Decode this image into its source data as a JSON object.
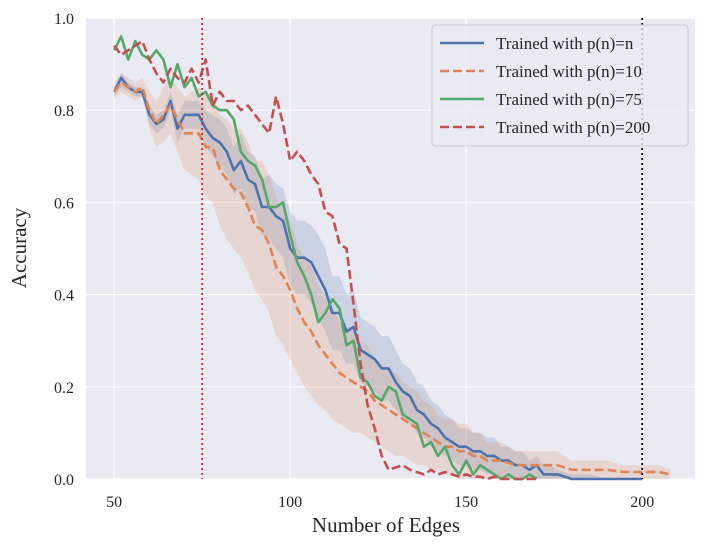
{
  "chart_data": {
    "type": "line",
    "title": "",
    "xlabel": "Number of Edges",
    "ylabel": "Accuracy",
    "xlim": [
      42,
      215
    ],
    "ylim": [
      0.0,
      1.0
    ],
    "xticks": [
      50,
      100,
      150,
      200
    ],
    "yticks": [
      0.0,
      0.2,
      0.4,
      0.6,
      0.8,
      1.0
    ],
    "xtick_labels": [
      "50",
      "100",
      "150",
      "200"
    ],
    "ytick_labels": [
      "0.0",
      "0.2",
      "0.4",
      "0.6",
      "0.8",
      "1.0"
    ],
    "grid": true,
    "legend_position": "top-right",
    "vlines": [
      {
        "x": 75,
        "color": "#d62728",
        "style": "dotted"
      },
      {
        "x": 200,
        "color": "#000000",
        "style": "dotted"
      }
    ],
    "series": [
      {
        "name": "Trained with p(n)=n",
        "color": "#4c72b0",
        "dash": "solid",
        "x": [
          50,
          52,
          54,
          56,
          58,
          60,
          62,
          64,
          66,
          68,
          70,
          72,
          74,
          76,
          78,
          80,
          82,
          84,
          86,
          88,
          90,
          92,
          94,
          96,
          98,
          100,
          102,
          104,
          106,
          108,
          110,
          112,
          114,
          116,
          118,
          120,
          122,
          124,
          126,
          128,
          130,
          132,
          134,
          136,
          138,
          140,
          142,
          144,
          146,
          148,
          150,
          152,
          154,
          156,
          158,
          160,
          162,
          164,
          166,
          168,
          170,
          172,
          174,
          176,
          178,
          180,
          185,
          190,
          195,
          200
        ],
        "values": [
          0.84,
          0.87,
          0.85,
          0.84,
          0.84,
          0.79,
          0.77,
          0.78,
          0.82,
          0.76,
          0.79,
          0.79,
          0.79,
          0.76,
          0.74,
          0.73,
          0.71,
          0.67,
          0.69,
          0.65,
          0.64,
          0.59,
          0.59,
          0.57,
          0.56,
          0.5,
          0.48,
          0.48,
          0.47,
          0.44,
          0.41,
          0.36,
          0.36,
          0.32,
          0.33,
          0.28,
          0.27,
          0.26,
          0.24,
          0.24,
          0.21,
          0.19,
          0.18,
          0.15,
          0.14,
          0.12,
          0.11,
          0.09,
          0.08,
          0.07,
          0.07,
          0.06,
          0.06,
          0.05,
          0.05,
          0.04,
          0.04,
          0.03,
          0.03,
          0.02,
          0.03,
          0.01,
          0.01,
          0.01,
          0.005,
          0.0,
          0.0,
          0.0,
          0.0,
          0.0
        ],
        "band_lower": [
          0.83,
          0.85,
          0.84,
          0.83,
          0.83,
          0.77,
          0.75,
          0.76,
          0.8,
          0.73,
          0.76,
          0.76,
          0.76,
          0.72,
          0.7,
          0.68,
          0.66,
          0.62,
          0.63,
          0.59,
          0.58,
          0.53,
          0.52,
          0.5,
          0.48,
          0.42,
          0.4,
          0.4,
          0.38,
          0.35,
          0.32,
          0.28,
          0.28,
          0.25,
          0.25,
          0.21,
          0.2,
          0.19,
          0.17,
          0.17,
          0.15,
          0.13,
          0.12,
          0.1,
          0.09,
          0.07,
          0.06,
          0.05,
          0.04,
          0.03,
          0.03,
          0.02,
          0.02,
          0.01,
          0.01,
          0.0,
          0.0,
          0.0,
          0.0,
          0.0,
          0.0,
          0.0,
          0.0,
          0.0,
          0.0,
          0.0,
          0.0,
          0.0,
          0.0,
          0.0
        ],
        "band_upper": [
          0.85,
          0.88,
          0.86,
          0.85,
          0.85,
          0.81,
          0.79,
          0.8,
          0.84,
          0.79,
          0.82,
          0.82,
          0.82,
          0.8,
          0.79,
          0.78,
          0.76,
          0.72,
          0.75,
          0.71,
          0.7,
          0.65,
          0.66,
          0.64,
          0.63,
          0.58,
          0.56,
          0.56,
          0.55,
          0.53,
          0.5,
          0.44,
          0.44,
          0.4,
          0.41,
          0.35,
          0.34,
          0.33,
          0.31,
          0.31,
          0.28,
          0.25,
          0.24,
          0.21,
          0.2,
          0.17,
          0.16,
          0.14,
          0.13,
          0.11,
          0.11,
          0.1,
          0.1,
          0.09,
          0.09,
          0.07,
          0.07,
          0.06,
          0.06,
          0.04,
          0.05,
          0.03,
          0.03,
          0.02,
          0.015,
          0.01,
          0.01,
          0.0,
          0.0,
          0.0
        ]
      },
      {
        "name": "Trained with p(n)=10",
        "color": "#dd8452",
        "dash": "dashed",
        "x": [
          50,
          52,
          54,
          56,
          58,
          60,
          62,
          64,
          66,
          68,
          70,
          72,
          74,
          76,
          78,
          80,
          82,
          84,
          86,
          88,
          90,
          92,
          94,
          96,
          98,
          100,
          102,
          104,
          106,
          108,
          110,
          112,
          114,
          116,
          118,
          120,
          122,
          124,
          126,
          128,
          130,
          132,
          134,
          136,
          138,
          140,
          142,
          144,
          146,
          148,
          150,
          152,
          154,
          156,
          158,
          160,
          164,
          168,
          172,
          176,
          180,
          185,
          190,
          195,
          200,
          205,
          208
        ],
        "values": [
          0.84,
          0.86,
          0.85,
          0.84,
          0.85,
          0.8,
          0.77,
          0.79,
          0.81,
          0.78,
          0.75,
          0.75,
          0.75,
          0.72,
          0.72,
          0.67,
          0.65,
          0.63,
          0.62,
          0.59,
          0.55,
          0.54,
          0.51,
          0.46,
          0.44,
          0.41,
          0.37,
          0.34,
          0.32,
          0.29,
          0.27,
          0.25,
          0.23,
          0.22,
          0.21,
          0.2,
          0.19,
          0.17,
          0.16,
          0.15,
          0.14,
          0.13,
          0.12,
          0.11,
          0.1,
          0.09,
          0.08,
          0.07,
          0.07,
          0.06,
          0.06,
          0.05,
          0.05,
          0.04,
          0.04,
          0.04,
          0.03,
          0.03,
          0.03,
          0.03,
          0.02,
          0.02,
          0.02,
          0.015,
          0.015,
          0.015,
          0.01
        ],
        "band_lower": [
          0.82,
          0.84,
          0.83,
          0.82,
          0.83,
          0.76,
          0.72,
          0.73,
          0.75,
          0.71,
          0.67,
          0.66,
          0.65,
          0.61,
          0.6,
          0.55,
          0.52,
          0.5,
          0.48,
          0.45,
          0.41,
          0.39,
          0.36,
          0.31,
          0.29,
          0.26,
          0.23,
          0.2,
          0.18,
          0.16,
          0.15,
          0.13,
          0.12,
          0.11,
          0.1,
          0.1,
          0.09,
          0.08,
          0.07,
          0.06,
          0.05,
          0.05,
          0.04,
          0.03,
          0.03,
          0.02,
          0.02,
          0.01,
          0.01,
          0.0,
          0.0,
          0.0,
          0.0,
          0.0,
          0.0,
          0.0,
          0.0,
          0.0,
          0.0,
          0.0,
          0.0,
          0.0,
          0.0,
          0.0,
          0.0,
          0.0,
          0.0
        ],
        "band_upper": [
          0.86,
          0.88,
          0.87,
          0.86,
          0.87,
          0.84,
          0.82,
          0.85,
          0.87,
          0.85,
          0.83,
          0.84,
          0.85,
          0.83,
          0.84,
          0.79,
          0.78,
          0.76,
          0.76,
          0.73,
          0.69,
          0.69,
          0.66,
          0.61,
          0.59,
          0.56,
          0.51,
          0.48,
          0.46,
          0.42,
          0.39,
          0.37,
          0.34,
          0.33,
          0.32,
          0.3,
          0.29,
          0.26,
          0.25,
          0.24,
          0.23,
          0.21,
          0.2,
          0.19,
          0.17,
          0.16,
          0.14,
          0.13,
          0.13,
          0.12,
          0.12,
          0.1,
          0.1,
          0.08,
          0.08,
          0.08,
          0.06,
          0.06,
          0.06,
          0.06,
          0.04,
          0.04,
          0.04,
          0.03,
          0.03,
          0.03,
          0.02
        ]
      },
      {
        "name": "Trained with p(n)=75",
        "color": "#55a868",
        "dash": "solid",
        "x": [
          50,
          52,
          54,
          56,
          58,
          60,
          62,
          64,
          66,
          68,
          70,
          72,
          74,
          76,
          78,
          80,
          82,
          84,
          86,
          88,
          90,
          92,
          94,
          96,
          98,
          100,
          102,
          104,
          106,
          108,
          110,
          112,
          114,
          116,
          118,
          120,
          122,
          124,
          126,
          128,
          130,
          132,
          134,
          136,
          138,
          140,
          142,
          144,
          146,
          148,
          150,
          152,
          154,
          156,
          158,
          160,
          162,
          164,
          166,
          168,
          170
        ],
        "values": [
          0.93,
          0.96,
          0.91,
          0.95,
          0.92,
          0.91,
          0.93,
          0.91,
          0.85,
          0.9,
          0.85,
          0.87,
          0.83,
          0.84,
          0.81,
          0.8,
          0.8,
          0.78,
          0.71,
          0.69,
          0.68,
          0.65,
          0.59,
          0.59,
          0.6,
          0.53,
          0.47,
          0.44,
          0.4,
          0.34,
          0.36,
          0.39,
          0.37,
          0.29,
          0.3,
          0.22,
          0.21,
          0.18,
          0.17,
          0.2,
          0.19,
          0.14,
          0.13,
          0.12,
          0.07,
          0.08,
          0.05,
          0.07,
          0.03,
          0.01,
          0.04,
          0.01,
          0.03,
          0.02,
          0.01,
          0.0,
          0.01,
          0.0,
          0.0,
          0.01,
          0.0
        ]
      },
      {
        "name": "Trained with p(n)=200",
        "color": "#c44e52",
        "dash": "dashed",
        "x": [
          50,
          52,
          54,
          56,
          58,
          60,
          62,
          64,
          66,
          68,
          70,
          72,
          74,
          76,
          78,
          80,
          82,
          84,
          86,
          88,
          90,
          92,
          94,
          96,
          98,
          100,
          102,
          104,
          106,
          108,
          110,
          112,
          114,
          116,
          118,
          120,
          122,
          124,
          126,
          128,
          130,
          132,
          134,
          136,
          138,
          140,
          142,
          144,
          146,
          148,
          150,
          152,
          154,
          156,
          158,
          160,
          165,
          170
        ],
        "values": [
          0.94,
          0.92,
          0.93,
          0.94,
          0.95,
          0.91,
          0.88,
          0.86,
          0.89,
          0.87,
          0.86,
          0.89,
          0.86,
          0.91,
          0.81,
          0.84,
          0.82,
          0.82,
          0.8,
          0.81,
          0.79,
          0.77,
          0.75,
          0.83,
          0.77,
          0.69,
          0.71,
          0.69,
          0.66,
          0.64,
          0.58,
          0.57,
          0.51,
          0.5,
          0.38,
          0.25,
          0.16,
          0.11,
          0.05,
          0.02,
          0.025,
          0.03,
          0.02,
          0.015,
          0.01,
          0.02,
          0.01,
          0.015,
          0.01,
          0.005,
          0.01,
          0.005,
          0.005,
          0.0,
          0.005,
          0.0,
          0.0,
          0.0
        ]
      }
    ]
  }
}
